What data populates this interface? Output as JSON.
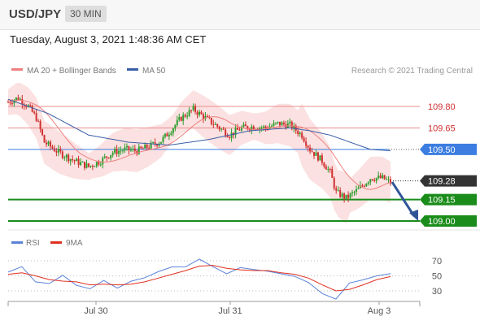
{
  "header": {
    "symbol": "USD/JPY",
    "timeframe": "30 MIN"
  },
  "timestamp": "Tuesday, August 3, 2021 1:48:36 AM CET",
  "legend": {
    "ma20_label": "MA 20 + Bollinger Bands",
    "ma50_label": "MA 50",
    "ma20_color": "#f08080",
    "ma50_color": "#3a5fa8",
    "credit": "Research © 2021 Trading Central"
  },
  "rsi_legend": {
    "rsi_label": "RSI",
    "ma_label": "9MA",
    "rsi_color": "#5a82d8",
    "ma_color": "#e03020"
  },
  "colors": {
    "up": "#2e9e2e",
    "down": "#d0302f",
    "resistance": "#e88",
    "support": "#1a8c1a",
    "pivot": "#3b7de0",
    "arrow": "#2f5597"
  },
  "chart_data": [
    {
      "type": "candlestick",
      "x_ticks": [
        "Jul 30",
        "Jul 31",
        "Aug 3"
      ],
      "ylim": [
        108.95,
        109.95
      ],
      "levels": [
        {
          "value": 109.8,
          "label": "109.80",
          "kind": "resistance"
        },
        {
          "value": 109.65,
          "label": "109.65",
          "kind": "resistance"
        },
        {
          "value": 109.5,
          "label": "109.50",
          "kind": "pivot"
        },
        {
          "value": 109.28,
          "label": "109.28",
          "kind": "last"
        },
        {
          "value": 109.15,
          "label": "109.15",
          "kind": "support"
        },
        {
          "value": 109.0,
          "label": "109.00",
          "kind": "support"
        }
      ],
      "close_points": [
        [
          0,
          109.83
        ],
        [
          5,
          109.86
        ],
        [
          10,
          109.8
        ],
        [
          14,
          109.72
        ],
        [
          18,
          109.55
        ],
        [
          25,
          109.48
        ],
        [
          33,
          109.42
        ],
        [
          40,
          109.38
        ],
        [
          46,
          109.42
        ],
        [
          52,
          109.48
        ],
        [
          58,
          109.5
        ],
        [
          64,
          109.49
        ],
        [
          70,
          109.52
        ],
        [
          76,
          109.56
        ],
        [
          80,
          109.62
        ],
        [
          86,
          109.72
        ],
        [
          92,
          109.78
        ],
        [
          98,
          109.72
        ],
        [
          104,
          109.66
        ],
        [
          110,
          109.6
        ],
        [
          116,
          109.65
        ],
        [
          122,
          109.66
        ],
        [
          128,
          109.65
        ],
        [
          134,
          109.68
        ],
        [
          140,
          109.67
        ],
        [
          146,
          109.6
        ],
        [
          150,
          109.5
        ],
        [
          156,
          109.42
        ],
        [
          160,
          109.34
        ],
        [
          163,
          109.2
        ],
        [
          168,
          109.16
        ],
        [
          174,
          109.22
        ],
        [
          180,
          109.3
        ],
        [
          186,
          109.3
        ],
        [
          190,
          109.27
        ]
      ],
      "ma50_points": [
        [
          0,
          109.85
        ],
        [
          20,
          109.75
        ],
        [
          40,
          109.6
        ],
        [
          60,
          109.55
        ],
        [
          80,
          109.53
        ],
        [
          100,
          109.57
        ],
        [
          120,
          109.63
        ],
        [
          140,
          109.65
        ],
        [
          150,
          109.63
        ],
        [
          160,
          109.6
        ],
        [
          170,
          109.55
        ],
        [
          180,
          109.5
        ],
        [
          190,
          109.49
        ]
      ]
    },
    {
      "type": "line",
      "name": "RSI",
      "ylim": [
        20,
        80
      ],
      "y_ticks": [
        "70",
        "50",
        "30"
      ],
      "series": [
        {
          "name": "RSI",
          "values": [
            55,
            60,
            45,
            38,
            50,
            40,
            30,
            45,
            35,
            40,
            50,
            55,
            60,
            65,
            70,
            62,
            55,
            58,
            60,
            57,
            50,
            52,
            40,
            25,
            22,
            38,
            45,
            52,
            50
          ]
        },
        {
          "name": "9MA",
          "values": [
            52,
            54,
            50,
            45,
            43,
            42,
            38,
            39,
            38,
            39,
            42,
            47,
            52,
            57,
            63,
            64,
            60,
            58,
            57,
            57,
            54,
            52,
            47,
            38,
            30,
            32,
            38,
            45,
            49
          ]
        }
      ]
    }
  ]
}
